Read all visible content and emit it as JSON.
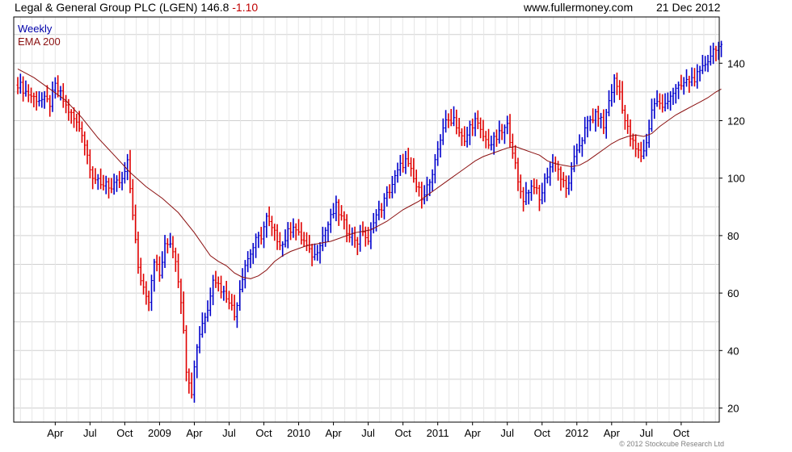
{
  "header": {
    "security": "Legal & General Group PLC (LGEN) 146.8",
    "change": "-1.10",
    "website": "www.fullermoney.com",
    "date": "21 Dec 2012"
  },
  "legend": {
    "interval": "Weekly",
    "ema_label": "EMA 200"
  },
  "copyright": "© 2012 Stockcube Research Ltd",
  "colors": {
    "up_bar": "#0000cc",
    "down_bar": "#e00000",
    "ema": "#8b1010",
    "grid": "#d0d0d0",
    "axis": "#000000"
  },
  "chart_data": {
    "type": "ohlc",
    "interval": "weekly",
    "y_axis_side": "right",
    "ylim": [
      16,
      152
    ],
    "y_ticks": [
      20,
      40,
      60,
      80,
      100,
      120,
      140
    ],
    "x_tick_labels": [
      "Apr",
      "Jul",
      "Oct",
      "2009",
      "Apr",
      "Jul",
      "Oct",
      "2010",
      "Apr",
      "Jul",
      "Oct",
      "2011",
      "Apr",
      "Jul",
      "Oct",
      "2012",
      "Apr",
      "Jul",
      "Oct"
    ],
    "x_tick_weeks": [
      14,
      27,
      40,
      53,
      66,
      79,
      92,
      105,
      118,
      131,
      144,
      157,
      170,
      183,
      196,
      209,
      222,
      235,
      248
    ],
    "grid": true,
    "close_points": [
      [
        0,
        133
      ],
      [
        3,
        130
      ],
      [
        6,
        128
      ],
      [
        10,
        127
      ],
      [
        12,
        126
      ],
      [
        14,
        132
      ],
      [
        16,
        129
      ],
      [
        18,
        125
      ],
      [
        20,
        122
      ],
      [
        22,
        119
      ],
      [
        24,
        116
      ],
      [
        26,
        108
      ],
      [
        28,
        101
      ],
      [
        31,
        97
      ],
      [
        33,
        99
      ],
      [
        35,
        96
      ],
      [
        37,
        98
      ],
      [
        39,
        99
      ],
      [
        41,
        105
      ],
      [
        43,
        88
      ],
      [
        45,
        68
      ],
      [
        47,
        62
      ],
      [
        49,
        58
      ],
      [
        51,
        72
      ],
      [
        53,
        66
      ],
      [
        55,
        76
      ],
      [
        57,
        78
      ],
      [
        59,
        72
      ],
      [
        61,
        58
      ],
      [
        63,
        34
      ],
      [
        65,
        26
      ],
      [
        67,
        42
      ],
      [
        69,
        50
      ],
      [
        71,
        54
      ],
      [
        73,
        66
      ],
      [
        75,
        63
      ],
      [
        77,
        60
      ],
      [
        79,
        58
      ],
      [
        81,
        52
      ],
      [
        83,
        62
      ],
      [
        85,
        70
      ],
      [
        87,
        74
      ],
      [
        89,
        78
      ],
      [
        91,
        80
      ],
      [
        93,
        86
      ],
      [
        95,
        82
      ],
      [
        97,
        79
      ],
      [
        99,
        77
      ],
      [
        101,
        81
      ],
      [
        103,
        84
      ],
      [
        105,
        80
      ],
      [
        107,
        78
      ],
      [
        109,
        74
      ],
      [
        111,
        73
      ],
      [
        113,
        78
      ],
      [
        115,
        82
      ],
      [
        117,
        86
      ],
      [
        119,
        90
      ],
      [
        121,
        86
      ],
      [
        123,
        82
      ],
      [
        125,
        80
      ],
      [
        127,
        78
      ],
      [
        129,
        82
      ],
      [
        131,
        77
      ],
      [
        133,
        86
      ],
      [
        135,
        88
      ],
      [
        137,
        92
      ],
      [
        139,
        96
      ],
      [
        141,
        100
      ],
      [
        143,
        104
      ],
      [
        145,
        106
      ],
      [
        147,
        102
      ],
      [
        149,
        97
      ],
      [
        151,
        94
      ],
      [
        153,
        97
      ],
      [
        155,
        100
      ],
      [
        157,
        110
      ],
      [
        159,
        118
      ],
      [
        161,
        120
      ],
      [
        163,
        121
      ],
      [
        165,
        116
      ],
      [
        167,
        112
      ],
      [
        169,
        118
      ],
      [
        171,
        120
      ],
      [
        173,
        116
      ],
      [
        175,
        113
      ],
      [
        177,
        112
      ],
      [
        179,
        114
      ],
      [
        181,
        116
      ],
      [
        183,
        118
      ],
      [
        185,
        110
      ],
      [
        187,
        98
      ],
      [
        189,
        93
      ],
      [
        191,
        96
      ],
      [
        193,
        98
      ],
      [
        195,
        92
      ],
      [
        197,
        99
      ],
      [
        199,
        104
      ],
      [
        201,
        106
      ],
      [
        203,
        100
      ],
      [
        205,
        96
      ],
      [
        207,
        102
      ],
      [
        209,
        110
      ],
      [
        211,
        114
      ],
      [
        213,
        119
      ],
      [
        215,
        121
      ],
      [
        217,
        122
      ],
      [
        219,
        118
      ],
      [
        221,
        127
      ],
      [
        223,
        134
      ],
      [
        225,
        130
      ],
      [
        227,
        120
      ],
      [
        229,
        114
      ],
      [
        231,
        110
      ],
      [
        233,
        108
      ],
      [
        235,
        112
      ],
      [
        237,
        124
      ],
      [
        239,
        127
      ],
      [
        241,
        124
      ],
      [
        243,
        128
      ],
      [
        245,
        130
      ],
      [
        247,
        131
      ],
      [
        249,
        133
      ],
      [
        251,
        134
      ],
      [
        253,
        135
      ],
      [
        255,
        136
      ],
      [
        257,
        140
      ],
      [
        259,
        143
      ],
      [
        261,
        146
      ],
      [
        263,
        145
      ]
    ],
    "ema_points": [
      [
        0,
        138
      ],
      [
        6,
        135
      ],
      [
        12,
        131
      ],
      [
        18,
        127
      ],
      [
        24,
        121
      ],
      [
        30,
        114
      ],
      [
        36,
        108
      ],
      [
        42,
        102
      ],
      [
        48,
        97
      ],
      [
        54,
        93
      ],
      [
        60,
        88
      ],
      [
        66,
        81
      ],
      [
        72,
        73
      ],
      [
        75,
        71
      ],
      [
        78,
        69.5
      ],
      [
        81,
        67
      ],
      [
        84,
        65.5
      ],
      [
        87,
        65
      ],
      [
        90,
        66
      ],
      [
        93,
        68
      ],
      [
        96,
        71
      ],
      [
        99,
        73
      ],
      [
        102,
        74.5
      ],
      [
        105,
        75.5
      ],
      [
        108,
        76.5
      ],
      [
        111,
        77
      ],
      [
        114,
        77.5
      ],
      [
        117,
        78
      ],
      [
        120,
        79
      ],
      [
        123,
        80
      ],
      [
        126,
        81
      ],
      [
        129,
        81.5
      ],
      [
        132,
        82
      ],
      [
        135,
        83.5
      ],
      [
        138,
        85
      ],
      [
        141,
        87
      ],
      [
        144,
        89
      ],
      [
        147,
        90.5
      ],
      [
        150,
        92
      ],
      [
        153,
        94
      ],
      [
        156,
        96
      ],
      [
        159,
        98
      ],
      [
        162,
        100
      ],
      [
        165,
        102
      ],
      [
        168,
        104
      ],
      [
        171,
        106
      ],
      [
        174,
        107.5
      ],
      [
        177,
        108.5
      ],
      [
        180,
        109.5
      ],
      [
        183,
        110.5
      ],
      [
        186,
        111
      ],
      [
        189,
        110
      ],
      [
        192,
        109
      ],
      [
        195,
        108
      ],
      [
        198,
        106
      ],
      [
        201,
        105
      ],
      [
        204,
        104.5
      ],
      [
        207,
        104
      ],
      [
        210,
        104.5
      ],
      [
        213,
        106
      ],
      [
        216,
        108
      ],
      [
        219,
        110
      ],
      [
        222,
        112
      ],
      [
        225,
        113.5
      ],
      [
        228,
        114.5
      ],
      [
        231,
        115
      ],
      [
        234,
        114.5
      ],
      [
        237,
        115.5
      ],
      [
        240,
        118
      ],
      [
        243,
        120
      ],
      [
        246,
        122
      ],
      [
        249,
        123.5
      ],
      [
        252,
        125
      ],
      [
        255,
        126.5
      ],
      [
        258,
        128
      ],
      [
        261,
        130
      ],
      [
        263,
        131
      ]
    ]
  }
}
